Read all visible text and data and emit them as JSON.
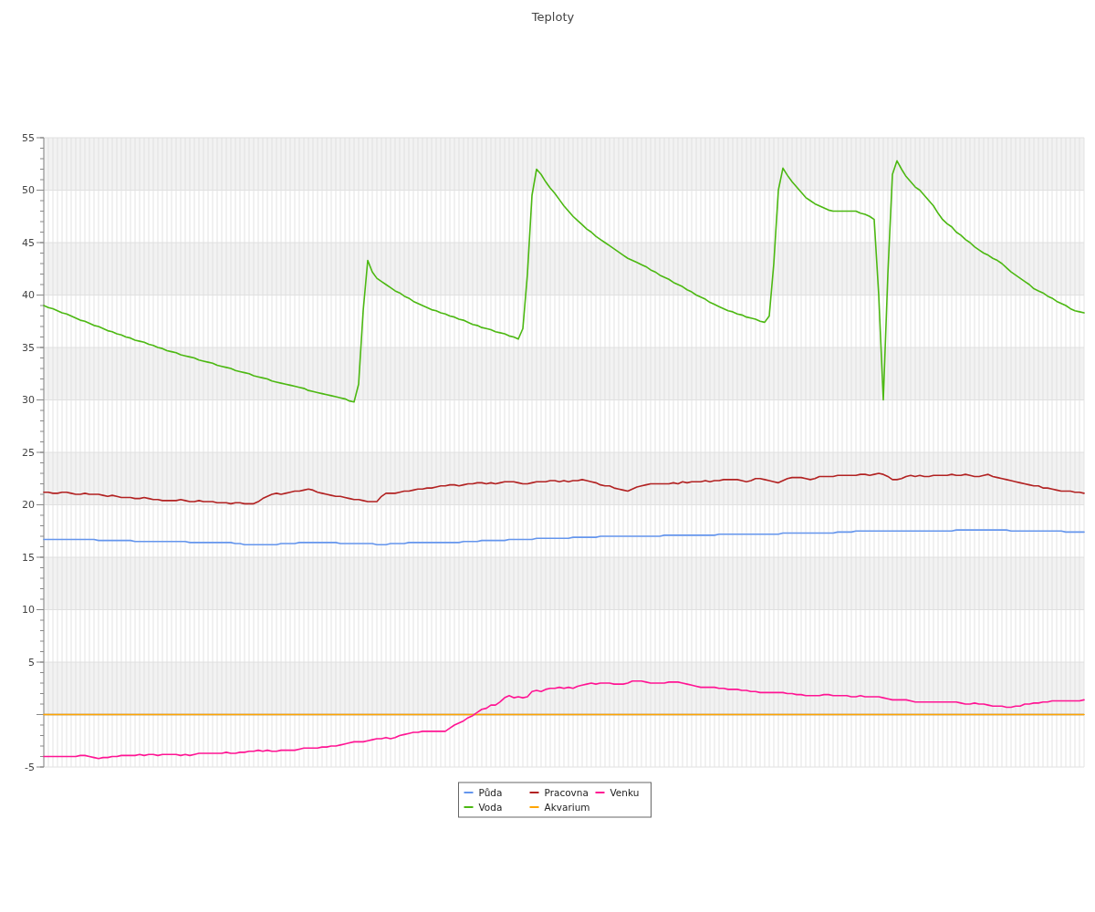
{
  "chart_data": {
    "type": "line",
    "title": "Teploty",
    "categories": [
      null,
      null,
      null,
      null,
      null,
      null,
      null,
      null,
      null,
      null,
      null,
      null,
      null,
      null,
      null,
      null,
      null,
      null,
      null,
      null,
      null,
      null,
      null,
      null,
      null,
      null,
      null,
      null,
      null,
      null,
      null,
      null,
      null,
      null,
      null,
      null,
      null,
      null,
      null,
      null,
      null,
      null,
      null,
      null,
      null,
      null,
      null,
      null,
      null,
      null,
      null,
      null,
      null,
      null,
      null,
      null,
      null,
      null,
      null,
      null,
      null,
      null,
      null,
      null,
      null,
      null,
      null,
      null,
      null,
      null,
      null,
      null,
      null,
      null,
      null,
      null,
      null,
      null,
      null,
      null,
      null,
      null,
      null,
      null,
      null,
      null,
      null,
      null,
      null,
      null,
      null,
      null,
      null,
      null,
      null,
      null,
      null,
      null,
      null,
      null,
      null,
      null,
      null,
      null,
      null,
      null,
      null,
      null,
      null,
      null,
      null,
      null,
      null,
      null,
      null,
      null,
      null,
      null,
      null,
      null,
      null,
      null,
      null,
      null,
      null,
      null,
      null,
      null,
      null,
      null,
      null,
      null,
      null,
      null,
      null,
      null,
      null,
      null,
      null,
      null,
      null,
      null,
      null,
      null,
      null,
      null,
      null,
      null,
      null,
      null,
      null,
      null,
      null,
      null,
      null,
      null,
      null,
      null,
      null,
      null,
      null,
      null,
      null,
      null,
      null,
      null,
      null,
      null,
      null,
      null,
      null,
      null,
      null,
      null,
      null,
      null,
      null,
      null,
      null,
      null,
      null,
      null,
      null,
      null,
      null,
      null,
      null,
      null,
      null,
      null,
      null,
      null,
      null,
      null,
      null,
      null,
      null,
      null,
      null,
      null,
      null,
      null,
      null,
      null,
      null,
      null,
      null,
      null,
      null,
      null,
      null,
      null,
      null,
      null,
      null,
      null,
      null,
      null,
      null,
      null,
      null,
      null,
      null,
      null,
      null,
      null,
      null,
      null,
      null
    ],
    "ylim": [
      -5,
      55
    ],
    "yticks": [
      {
        "value": -5,
        "label": "-5"
      },
      {
        "value": 0,
        "label": null
      },
      5,
      10,
      15,
      20,
      25,
      30,
      35,
      40,
      45,
      50,
      55
    ],
    "grid": true,
    "legend": "bottom",
    "series": [
      {
        "name": "Půda",
        "color": "#6495ed",
        "values": [
          16.7,
          16.7,
          16.7,
          16.7,
          16.7,
          16.7,
          16.7,
          16.7,
          16.7,
          16.7,
          16.7,
          16.7,
          16.6,
          16.6,
          16.6,
          16.6,
          16.6,
          16.6,
          16.6,
          16.6,
          16.5,
          16.5,
          16.5,
          16.5,
          16.5,
          16.5,
          16.5,
          16.5,
          16.5,
          16.5,
          16.5,
          16.5,
          16.4,
          16.4,
          16.4,
          16.4,
          16.4,
          16.4,
          16.4,
          16.4,
          16.4,
          16.4,
          16.3,
          16.3,
          16.2,
          16.2,
          16.2,
          16.2,
          16.2,
          16.2,
          16.2,
          16.2,
          16.3,
          16.3,
          16.3,
          16.3,
          16.4,
          16.4,
          16.4,
          16.4,
          16.4,
          16.4,
          16.4,
          16.4,
          16.4,
          16.3,
          16.3,
          16.3,
          16.3,
          16.3,
          16.3,
          16.3,
          16.3,
          16.2,
          16.2,
          16.2,
          16.3,
          16.3,
          16.3,
          16.3,
          16.4,
          16.4,
          16.4,
          16.4,
          16.4,
          16.4,
          16.4,
          16.4,
          16.4,
          16.4,
          16.4,
          16.4,
          16.5,
          16.5,
          16.5,
          16.5,
          16.6,
          16.6,
          16.6,
          16.6,
          16.6,
          16.6,
          16.7,
          16.7,
          16.7,
          16.7,
          16.7,
          16.7,
          16.8,
          16.8,
          16.8,
          16.8,
          16.8,
          16.8,
          16.8,
          16.8,
          16.9,
          16.9,
          16.9,
          16.9,
          16.9,
          16.9,
          17.0,
          17.0,
          17.0,
          17.0,
          17.0,
          17.0,
          17.0,
          17.0,
          17.0,
          17.0,
          17.0,
          17.0,
          17.0,
          17.0,
          17.1,
          17.1,
          17.1,
          17.1,
          17.1,
          17.1,
          17.1,
          17.1,
          17.1,
          17.1,
          17.1,
          17.1,
          17.2,
          17.2,
          17.2,
          17.2,
          17.2,
          17.2,
          17.2,
          17.2,
          17.2,
          17.2,
          17.2,
          17.2,
          17.2,
          17.2,
          17.3,
          17.3,
          17.3,
          17.3,
          17.3,
          17.3,
          17.3,
          17.3,
          17.3,
          17.3,
          17.3,
          17.3,
          17.4,
          17.4,
          17.4,
          17.4,
          17.5,
          17.5,
          17.5,
          17.5,
          17.5,
          17.5,
          17.5,
          17.5,
          17.5,
          17.5,
          17.5,
          17.5,
          17.5,
          17.5,
          17.5,
          17.5,
          17.5,
          17.5,
          17.5,
          17.5,
          17.5,
          17.5,
          17.6,
          17.6,
          17.6,
          17.6,
          17.6,
          17.6,
          17.6,
          17.6,
          17.6,
          17.6,
          17.6,
          17.6,
          17.5,
          17.5,
          17.5,
          17.5,
          17.5,
          17.5,
          17.5,
          17.5,
          17.5,
          17.5,
          17.5,
          17.5,
          17.4,
          17.4,
          17.4,
          17.4,
          17.4
        ]
      },
      {
        "name": "Voda",
        "color": "#4cb812",
        "values": [
          39.0,
          38.8,
          38.7,
          38.5,
          38.3,
          38.2,
          38.0,
          37.8,
          37.6,
          37.5,
          37.3,
          37.1,
          37.0,
          36.8,
          36.6,
          36.5,
          36.3,
          36.2,
          36.0,
          35.9,
          35.7,
          35.6,
          35.5,
          35.3,
          35.2,
          35.0,
          34.9,
          34.7,
          34.6,
          34.5,
          34.3,
          34.2,
          34.1,
          34.0,
          33.8,
          33.7,
          33.6,
          33.5,
          33.3,
          33.2,
          33.1,
          33.0,
          32.8,
          32.7,
          32.6,
          32.5,
          32.3,
          32.2,
          32.1,
          32.0,
          31.8,
          31.7,
          31.6,
          31.5,
          31.4,
          31.3,
          31.2,
          31.1,
          30.9,
          30.8,
          30.7,
          30.6,
          30.5,
          30.4,
          30.3,
          30.2,
          30.1,
          29.9,
          29.8,
          31.5,
          38.5,
          43.3,
          42.2,
          41.6,
          41.3,
          41.0,
          40.7,
          40.4,
          40.2,
          39.9,
          39.7,
          39.4,
          39.2,
          39.0,
          38.8,
          38.6,
          38.5,
          38.3,
          38.2,
          38.0,
          37.9,
          37.7,
          37.6,
          37.4,
          37.2,
          37.1,
          36.9,
          36.8,
          36.7,
          36.5,
          36.4,
          36.3,
          36.1,
          36.0,
          35.8,
          36.8,
          42.0,
          49.5,
          52.0,
          51.5,
          50.8,
          50.2,
          49.7,
          49.1,
          48.5,
          48.0,
          47.5,
          47.1,
          46.7,
          46.3,
          46.0,
          45.6,
          45.3,
          45.0,
          44.7,
          44.4,
          44.1,
          43.8,
          43.5,
          43.3,
          43.1,
          42.9,
          42.7,
          42.4,
          42.2,
          41.9,
          41.7,
          41.5,
          41.2,
          41.0,
          40.8,
          40.5,
          40.3,
          40.0,
          39.8,
          39.6,
          39.3,
          39.1,
          38.9,
          38.7,
          38.5,
          38.4,
          38.2,
          38.1,
          37.9,
          37.8,
          37.7,
          37.5,
          37.4,
          38.0,
          43.0,
          50.0,
          52.1,
          51.4,
          50.8,
          50.3,
          49.8,
          49.3,
          49.0,
          48.7,
          48.5,
          48.3,
          48.1,
          48.0,
          48.0,
          48.0,
          48.0,
          48.0,
          48.0,
          47.8,
          47.7,
          47.5,
          47.2,
          40.0,
          30.0,
          42.0,
          51.5,
          52.8,
          52.0,
          51.3,
          50.8,
          50.3,
          50.0,
          49.5,
          49.0,
          48.5,
          47.8,
          47.2,
          46.8,
          46.5,
          46.0,
          45.7,
          45.3,
          45.0,
          44.6,
          44.3,
          44.0,
          43.8,
          43.5,
          43.3,
          43.0,
          42.6,
          42.2,
          41.9,
          41.6,
          41.3,
          41.0,
          40.6,
          40.4,
          40.2,
          39.9,
          39.7,
          39.4,
          39.2,
          39.0,
          38.7,
          38.5,
          38.4,
          38.3
        ]
      },
      {
        "name": "Pracovna",
        "color": "#b22222",
        "values": [
          21.2,
          21.2,
          21.1,
          21.1,
          21.2,
          21.2,
          21.1,
          21.0,
          21.0,
          21.1,
          21.0,
          21.0,
          21.0,
          20.9,
          20.8,
          20.9,
          20.8,
          20.7,
          20.7,
          20.7,
          20.6,
          20.6,
          20.7,
          20.6,
          20.5,
          20.5,
          20.4,
          20.4,
          20.4,
          20.4,
          20.5,
          20.4,
          20.3,
          20.3,
          20.4,
          20.3,
          20.3,
          20.3,
          20.2,
          20.2,
          20.2,
          20.1,
          20.2,
          20.2,
          20.1,
          20.1,
          20.1,
          20.3,
          20.6,
          20.8,
          21.0,
          21.1,
          21.0,
          21.1,
          21.2,
          21.3,
          21.3,
          21.4,
          21.5,
          21.4,
          21.2,
          21.1,
          21.0,
          20.9,
          20.8,
          20.8,
          20.7,
          20.6,
          20.5,
          20.5,
          20.4,
          20.3,
          20.3,
          20.3,
          20.8,
          21.1,
          21.1,
          21.1,
          21.2,
          21.3,
          21.3,
          21.4,
          21.5,
          21.5,
          21.6,
          21.6,
          21.7,
          21.8,
          21.8,
          21.9,
          21.9,
          21.8,
          21.9,
          22.0,
          22.0,
          22.1,
          22.1,
          22.0,
          22.1,
          22.0,
          22.1,
          22.2,
          22.2,
          22.2,
          22.1,
          22.0,
          22.0,
          22.1,
          22.2,
          22.2,
          22.2,
          22.3,
          22.3,
          22.2,
          22.3,
          22.2,
          22.3,
          22.3,
          22.4,
          22.3,
          22.2,
          22.1,
          21.9,
          21.8,
          21.8,
          21.6,
          21.5,
          21.4,
          21.3,
          21.5,
          21.7,
          21.8,
          21.9,
          22.0,
          22.0,
          22.0,
          22.0,
          22.0,
          22.1,
          22.0,
          22.2,
          22.1,
          22.2,
          22.2,
          22.2,
          22.3,
          22.2,
          22.3,
          22.3,
          22.4,
          22.4,
          22.4,
          22.4,
          22.3,
          22.2,
          22.3,
          22.5,
          22.5,
          22.4,
          22.3,
          22.2,
          22.1,
          22.3,
          22.5,
          22.6,
          22.6,
          22.6,
          22.5,
          22.4,
          22.5,
          22.7,
          22.7,
          22.7,
          22.7,
          22.8,
          22.8,
          22.8,
          22.8,
          22.8,
          22.9,
          22.9,
          22.8,
          22.9,
          23.0,
          22.9,
          22.7,
          22.4,
          22.4,
          22.5,
          22.7,
          22.8,
          22.7,
          22.8,
          22.7,
          22.7,
          22.8,
          22.8,
          22.8,
          22.8,
          22.9,
          22.8,
          22.8,
          22.9,
          22.8,
          22.7,
          22.7,
          22.8,
          22.9,
          22.7,
          22.6,
          22.5,
          22.4,
          22.3,
          22.2,
          22.1,
          22.0,
          21.9,
          21.8,
          21.8,
          21.6,
          21.6,
          21.5,
          21.4,
          21.3,
          21.3,
          21.3,
          21.2,
          21.2,
          21.1
        ]
      },
      {
        "name": "Akvarium",
        "color": "#ffa500",
        "values": [
          0,
          0,
          0,
          0,
          0,
          0,
          0,
          0,
          0,
          0,
          0,
          0,
          0,
          0,
          0,
          0,
          0,
          0,
          0,
          0,
          0,
          0,
          0,
          0,
          0,
          0,
          0,
          0,
          0,
          0,
          0,
          0,
          0,
          0,
          0,
          0,
          0,
          0,
          0,
          0,
          0,
          0,
          0,
          0,
          0,
          0,
          0,
          0,
          0,
          0,
          0,
          0,
          0,
          0,
          0,
          0,
          0,
          0,
          0,
          0,
          0,
          0,
          0,
          0,
          0,
          0,
          0,
          0,
          0,
          0,
          0,
          0,
          0,
          0,
          0,
          0,
          0,
          0,
          0,
          0,
          0,
          0,
          0,
          0,
          0,
          0,
          0,
          0,
          0,
          0,
          0,
          0,
          0,
          0,
          0,
          0,
          0,
          0,
          0,
          0,
          0,
          0,
          0,
          0,
          0,
          0,
          0,
          0,
          0,
          0,
          0,
          0,
          0,
          0,
          0,
          0,
          0,
          0,
          0,
          0,
          0,
          0,
          0,
          0,
          0,
          0,
          0,
          0,
          0,
          0,
          0,
          0,
          0,
          0,
          0,
          0,
          0,
          0,
          0,
          0,
          0,
          0,
          0,
          0,
          0,
          0,
          0,
          0,
          0,
          0,
          0,
          0,
          0,
          0,
          0,
          0,
          0,
          0,
          0,
          0,
          0,
          0,
          0,
          0,
          0,
          0,
          0,
          0,
          0,
          0,
          0,
          0,
          0,
          0,
          0,
          0,
          0,
          0,
          0,
          0,
          0,
          0,
          0,
          0,
          0,
          0,
          0,
          0,
          0,
          0,
          0,
          0,
          0,
          0,
          0,
          0,
          0,
          0,
          0,
          0,
          0,
          0,
          0,
          0,
          0,
          0,
          0,
          0,
          0,
          0,
          0,
          0,
          0,
          0,
          0,
          0,
          0,
          0,
          0,
          0,
          0,
          0,
          0,
          0,
          0,
          0,
          0,
          0,
          0
        ]
      },
      {
        "name": "Venku",
        "color": "#ff1493",
        "values": [
          -4.0,
          -4.0,
          -4.0,
          -4.0,
          -4.0,
          -4.0,
          -4.0,
          -4.0,
          -3.9,
          -3.9,
          -4.0,
          -4.1,
          -4.2,
          -4.1,
          -4.1,
          -4.0,
          -4.0,
          -3.9,
          -3.9,
          -3.9,
          -3.9,
          -3.8,
          -3.9,
          -3.8,
          -3.8,
          -3.9,
          -3.8,
          -3.8,
          -3.8,
          -3.8,
          -3.9,
          -3.8,
          -3.9,
          -3.8,
          -3.7,
          -3.7,
          -3.7,
          -3.7,
          -3.7,
          -3.7,
          -3.6,
          -3.7,
          -3.7,
          -3.6,
          -3.6,
          -3.5,
          -3.5,
          -3.4,
          -3.5,
          -3.4,
          -3.5,
          -3.5,
          -3.4,
          -3.4,
          -3.4,
          -3.4,
          -3.3,
          -3.2,
          -3.2,
          -3.2,
          -3.2,
          -3.1,
          -3.1,
          -3.0,
          -3.0,
          -2.9,
          -2.8,
          -2.7,
          -2.6,
          -2.6,
          -2.6,
          -2.5,
          -2.4,
          -2.3,
          -2.3,
          -2.2,
          -2.3,
          -2.2,
          -2.0,
          -1.9,
          -1.8,
          -1.7,
          -1.7,
          -1.6,
          -1.6,
          -1.6,
          -1.6,
          -1.6,
          -1.6,
          -1.3,
          -1.0,
          -0.8,
          -0.6,
          -0.3,
          -0.1,
          0.2,
          0.5,
          0.6,
          0.9,
          0.9,
          1.2,
          1.6,
          1.8,
          1.6,
          1.7,
          1.6,
          1.7,
          2.2,
          2.3,
          2.2,
          2.4,
          2.5,
          2.5,
          2.6,
          2.5,
          2.6,
          2.5,
          2.7,
          2.8,
          2.9,
          3.0,
          2.9,
          3.0,
          3.0,
          3.0,
          2.9,
          2.9,
          2.9,
          3.0,
          3.2,
          3.2,
          3.2,
          3.1,
          3.0,
          3.0,
          3.0,
          3.0,
          3.1,
          3.1,
          3.1,
          3.0,
          2.9,
          2.8,
          2.7,
          2.6,
          2.6,
          2.6,
          2.6,
          2.5,
          2.5,
          2.4,
          2.4,
          2.4,
          2.3,
          2.3,
          2.2,
          2.2,
          2.1,
          2.1,
          2.1,
          2.1,
          2.1,
          2.1,
          2.0,
          2.0,
          1.9,
          1.9,
          1.8,
          1.8,
          1.8,
          1.8,
          1.9,
          1.9,
          1.8,
          1.8,
          1.8,
          1.8,
          1.7,
          1.7,
          1.8,
          1.7,
          1.7,
          1.7,
          1.7,
          1.6,
          1.5,
          1.4,
          1.4,
          1.4,
          1.4,
          1.3,
          1.2,
          1.2,
          1.2,
          1.2,
          1.2,
          1.2,
          1.2,
          1.2,
          1.2,
          1.2,
          1.1,
          1.0,
          1.0,
          1.1,
          1.0,
          1.0,
          0.9,
          0.8,
          0.8,
          0.8,
          0.7,
          0.7,
          0.8,
          0.8,
          1.0,
          1.0,
          1.1,
          1.1,
          1.2,
          1.2,
          1.3,
          1.3,
          1.3,
          1.3,
          1.3,
          1.3,
          1.3,
          1.4
        ]
      }
    ]
  }
}
